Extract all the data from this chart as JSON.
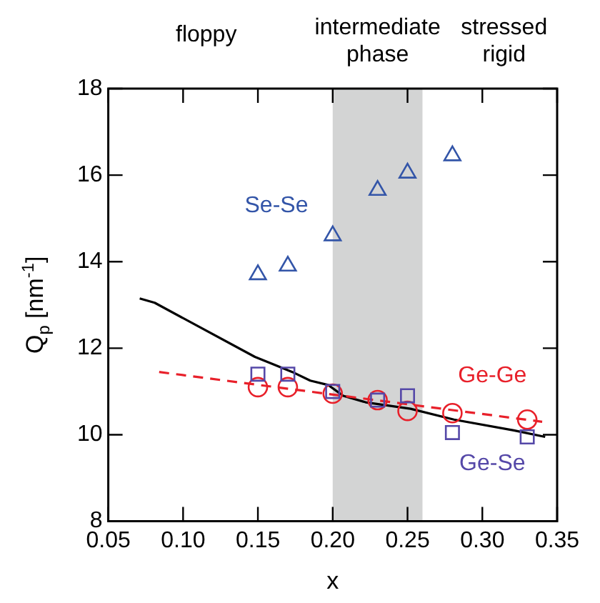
{
  "chart_data": {
    "type": "scatter",
    "xlabel": "x",
    "ylabel": "Q$_{p}$ [nm$^{-1}$]",
    "xlim": [
      0.05,
      0.35
    ],
    "xticks": [
      {
        "value": 0.05,
        "label": "0.05"
      },
      {
        "value": 0.1,
        "label": "0.10"
      },
      {
        "value": 0.15,
        "label": "0.15"
      },
      {
        "value": 0.2,
        "label": "0.20"
      },
      {
        "value": 0.25,
        "label": "0.25"
      },
      {
        "value": 0.3,
        "label": "0.30"
      },
      {
        "value": 0.35,
        "label": "0.35"
      }
    ],
    "ylim": [
      8,
      18
    ],
    "yticks": [
      8,
      10,
      12,
      14,
      16,
      18
    ],
    "grid": false,
    "legend": false,
    "series": [
      {
        "name": "Se-Se",
        "marker": "triangle",
        "color": "#3355a8",
        "x": [
          0.15,
          0.17,
          0.2,
          0.23,
          0.25,
          0.28
        ],
        "values": [
          13.7,
          13.9,
          14.6,
          15.65,
          16.05,
          16.45
        ]
      },
      {
        "name": "Ge-Se",
        "marker": "square",
        "color": "#5548a8",
        "x": [
          0.15,
          0.17,
          0.2,
          0.23,
          0.25,
          0.28,
          0.33
        ],
        "values": [
          11.4,
          11.4,
          11.0,
          10.8,
          10.9,
          10.05,
          9.95
        ]
      },
      {
        "name": "Ge-Ge",
        "marker": "circle",
        "color": "#e8202a",
        "x": [
          0.15,
          0.17,
          0.2,
          0.23,
          0.25,
          0.28,
          0.33
        ],
        "values": [
          11.1,
          11.1,
          10.95,
          10.8,
          10.55,
          10.5,
          10.35
        ]
      },
      {
        "type": "line",
        "marker": "none",
        "line_style": "dashed",
        "color": "#e8202a",
        "x": [
          0.084,
          0.34
        ],
        "values": [
          11.45,
          10.3
        ]
      },
      {
        "type": "line",
        "marker": "none",
        "line_style": "solid",
        "color": "#000000",
        "x": [
          0.071,
          0.081,
          0.148,
          0.173,
          0.185,
          0.197,
          0.207,
          0.222,
          0.252,
          0.281,
          0.321,
          0.342
        ],
        "values": [
          13.15,
          13.05,
          11.8,
          11.45,
          11.25,
          11.15,
          10.9,
          10.75,
          10.6,
          10.35,
          10.1,
          9.95
        ]
      }
    ],
    "bands": [
      {
        "axis": "x",
        "from": 0.2,
        "to": 0.26,
        "label": "intermediate phase",
        "color": "#d3d4d4"
      }
    ],
    "annotations": [
      "floppy",
      "stressed rigid"
    ]
  }
}
